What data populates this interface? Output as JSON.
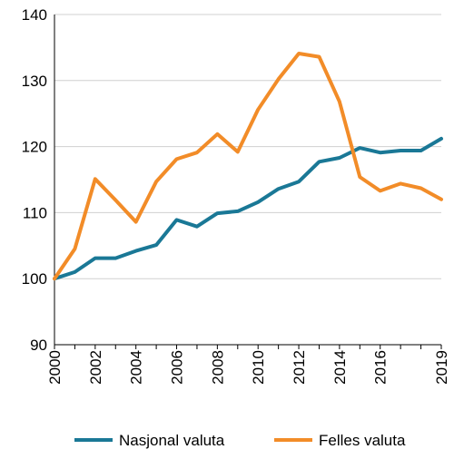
{
  "chart_data": {
    "type": "line",
    "x": [
      2000,
      2001,
      2002,
      2003,
      2004,
      2005,
      2006,
      2007,
      2008,
      2009,
      2010,
      2011,
      2012,
      2013,
      2014,
      2015,
      2016,
      2017,
      2018,
      2019
    ],
    "x_ticks": [
      "2000",
      "2002",
      "2004",
      "2006",
      "2008",
      "2010",
      "2012",
      "2014",
      "2016",
      "2019"
    ],
    "y_ticks": [
      "90",
      "100",
      "110",
      "120",
      "130",
      "140"
    ],
    "ylim": [
      90,
      140
    ],
    "xlim": [
      2000,
      2019
    ],
    "grid": "horizontal",
    "legend": "bottom",
    "series": [
      {
        "name": "Nasjonal valuta",
        "color": "#1a7896",
        "values": [
          100,
          101,
          103.1,
          103.1,
          104.2,
          105.1,
          108.9,
          107.9,
          109.9,
          110.2,
          111.6,
          113.6,
          114.7,
          117.7,
          118.3,
          119.8,
          119.1,
          119.4,
          119.4,
          121.2
        ]
      },
      {
        "name": "Felles valuta",
        "color": "#f28c28",
        "values": [
          100,
          104.5,
          115.1,
          111.9,
          108.6,
          114.7,
          118.1,
          119.1,
          121.9,
          119.2,
          125.6,
          130.2,
          134.1,
          133.6,
          126.8,
          115.4,
          113.3,
          114.4,
          113.7,
          112
        ]
      }
    ]
  }
}
